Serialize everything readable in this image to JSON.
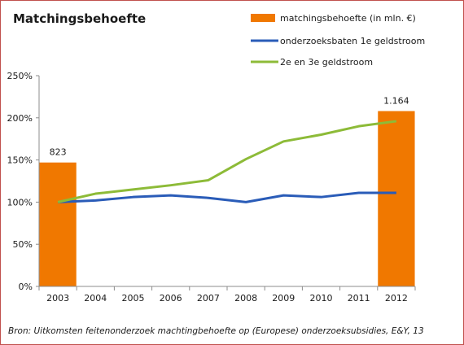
{
  "chart_data": {
    "type": "bar+line",
    "title": "Matchingsbehoefte",
    "categories": [
      "2003",
      "2004",
      "2005",
      "2006",
      "2007",
      "2008",
      "2009",
      "2010",
      "2011",
      "2012"
    ],
    "ylim": [
      0,
      250
    ],
    "yticks": [
      "0%",
      "50%",
      "100%",
      "150%",
      "200%",
      "250%"
    ],
    "y_unit": "%",
    "grid": false,
    "legend": "top-right",
    "series": [
      {
        "name": "matchingsbehoefte (in mln. €)",
        "type": "bar",
        "color": "#f07800",
        "values": [
          147,
          null,
          null,
          null,
          null,
          null,
          null,
          null,
          null,
          208
        ],
        "data_labels": [
          "823",
          "",
          "",
          "",
          "",
          "",
          "",
          "",
          "",
          "1.164"
        ]
      },
      {
        "name": "onderzoeksbaten 1e geldstroom",
        "type": "line",
        "color": "#2a5cb8",
        "values": [
          100,
          102,
          106,
          108,
          105,
          100,
          108,
          106,
          111,
          111
        ]
      },
      {
        "name": "2e en 3e geldstroom",
        "type": "line",
        "color": "#8dbb38",
        "values": [
          100,
          110,
          115,
          120,
          126,
          151,
          172,
          180,
          190,
          196
        ]
      }
    ],
    "source": "Bron: Uitkomsten feitenonderzoek machtingbehoefte op (Europese) onderzoeksubsidies, E&Y, 13"
  }
}
